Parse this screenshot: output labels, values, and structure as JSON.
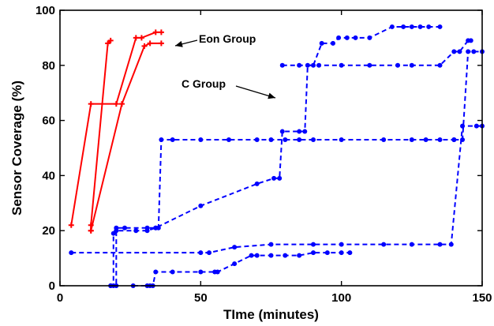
{
  "chart_data": {
    "type": "line",
    "xlabel": "TIme (minutes)",
    "ylabel": "Sensor Coverage (%)",
    "xlim": [
      0,
      150
    ],
    "ylim": [
      0,
      100
    ],
    "xticks": [
      0,
      50,
      100,
      150
    ],
    "yticks": [
      0,
      20,
      40,
      60,
      80,
      100
    ],
    "grid": false,
    "colors": {
      "eon": "#ff0000",
      "c": "#0000ff",
      "axis": "#000000"
    },
    "annotations": [
      {
        "text": "Eon Group",
        "target": "Eon Group curves"
      },
      {
        "text": "C Group",
        "target": "C Group curves"
      }
    ],
    "series": [
      {
        "group": "eon",
        "style": "solid",
        "marker": "plus",
        "points": [
          [
            4,
            22
          ],
          [
            11,
            66
          ],
          [
            20,
            66
          ],
          [
            27,
            90
          ],
          [
            29,
            90
          ],
          [
            34,
            92
          ],
          [
            36,
            92
          ]
        ]
      },
      {
        "group": "eon",
        "style": "solid",
        "marker": "plus",
        "points": [
          [
            11,
            20
          ],
          [
            11,
            22
          ],
          [
            17,
            88
          ],
          [
            18,
            89
          ]
        ]
      },
      {
        "group": "eon",
        "style": "solid",
        "marker": "plus",
        "points": [
          [
            11,
            20
          ],
          [
            22,
            66
          ],
          [
            30,
            87
          ],
          [
            32,
            88
          ],
          [
            36,
            88
          ]
        ]
      },
      {
        "group": "c",
        "style": "dashed",
        "marker": "dot",
        "points": [
          [
            18,
            0
          ],
          [
            19,
            0
          ],
          [
            19,
            19
          ],
          [
            20,
            21
          ],
          [
            23,
            21
          ],
          [
            31,
            21
          ],
          [
            34,
            21
          ],
          [
            35,
            21
          ],
          [
            36,
            53
          ],
          [
            40,
            53
          ],
          [
            50,
            53
          ],
          [
            60,
            53
          ],
          [
            70,
            53
          ],
          [
            75,
            53
          ],
          [
            80,
            53
          ],
          [
            85,
            53
          ],
          [
            90,
            53
          ],
          [
            100,
            53
          ],
          [
            115,
            53
          ],
          [
            125,
            53
          ],
          [
            130,
            53
          ],
          [
            135,
            53
          ],
          [
            140,
            53
          ]
        ]
      },
      {
        "group": "c",
        "style": "dashed",
        "marker": "dot",
        "points": [
          [
            18,
            0
          ],
          [
            20,
            0
          ],
          [
            20,
            20
          ],
          [
            27,
            20
          ],
          [
            31,
            20
          ],
          [
            34,
            21
          ],
          [
            50,
            29
          ],
          [
            70,
            37
          ],
          [
            76,
            39
          ],
          [
            78,
            39
          ],
          [
            79,
            56
          ],
          [
            85,
            56
          ],
          [
            87,
            56
          ],
          [
            88,
            80
          ],
          [
            92,
            80
          ],
          [
            100,
            80
          ],
          [
            110,
            80
          ],
          [
            120,
            80
          ],
          [
            125,
            80
          ],
          [
            135,
            80
          ],
          [
            140,
            85
          ],
          [
            142,
            85
          ],
          [
            145,
            89
          ],
          [
            146,
            89
          ]
        ]
      },
      {
        "group": "c",
        "style": "dashed",
        "marker": "dot",
        "points": [
          [
            26,
            0
          ],
          [
            31,
            0
          ],
          [
            32,
            0
          ],
          [
            33,
            0
          ],
          [
            34,
            5
          ],
          [
            40,
            5
          ],
          [
            50,
            5
          ],
          [
            55,
            5
          ],
          [
            56,
            5
          ],
          [
            62,
            8
          ],
          [
            68,
            11
          ],
          [
            70,
            11
          ],
          [
            75,
            11
          ],
          [
            80,
            11
          ],
          [
            85,
            11
          ],
          [
            90,
            12
          ],
          [
            95,
            12
          ],
          [
            100,
            12
          ],
          [
            103,
            12
          ]
        ]
      },
      {
        "group": "c",
        "style": "dashed",
        "marker": "dot",
        "points": [
          [
            4,
            12
          ],
          [
            50,
            12
          ],
          [
            53,
            12
          ],
          [
            62,
            14
          ],
          [
            75,
            15
          ],
          [
            90,
            15
          ],
          [
            100,
            15
          ],
          [
            115,
            15
          ],
          [
            125,
            15
          ],
          [
            135,
            15
          ],
          [
            139,
            15
          ],
          [
            143,
            58
          ],
          [
            148,
            58
          ],
          [
            150,
            58
          ]
        ]
      },
      {
        "group": "c",
        "style": "dashed",
        "marker": "dot",
        "points": [
          [
            79,
            80
          ],
          [
            85,
            80
          ],
          [
            90,
            80
          ],
          [
            93,
            88
          ],
          [
            97,
            88
          ],
          [
            99,
            90
          ],
          [
            102,
            90
          ],
          [
            105,
            90
          ],
          [
            110,
            90
          ],
          [
            118,
            94
          ],
          [
            122,
            94
          ],
          [
            125,
            94
          ],
          [
            128,
            94
          ],
          [
            131,
            94
          ],
          [
            135,
            94
          ]
        ]
      },
      {
        "group": "c",
        "style": "dashed",
        "marker": "dot",
        "points": [
          [
            140,
            53
          ],
          [
            143,
            53
          ],
          [
            145,
            85
          ],
          [
            147,
            85
          ],
          [
            150,
            85
          ]
        ]
      }
    ]
  }
}
